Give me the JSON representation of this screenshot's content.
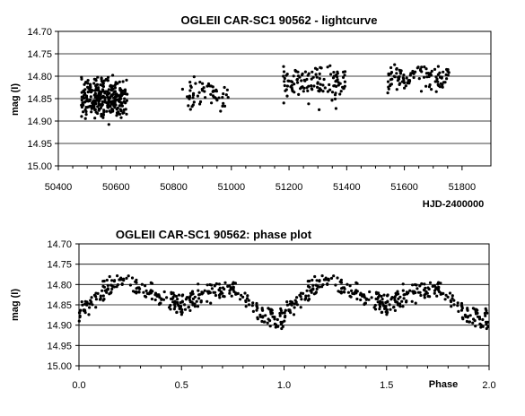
{
  "chart_data": [
    {
      "type": "scatter",
      "title": "OGLEII CAR-SC1 90562 - lightcurve",
      "xlabel": "HJD-2400000",
      "ylabel": "mag (I)",
      "xlim": [
        50400,
        51900
      ],
      "ylim": [
        15.0,
        14.7
      ],
      "y_inverted": true,
      "xticks": [
        50400,
        50600,
        50800,
        51000,
        51200,
        51400,
        51600,
        51800
      ],
      "xtick_labels": [
        "50400",
        "50600",
        "50800",
        "51000",
        "51200",
        "51400",
        "51600",
        "51800"
      ],
      "yticks": [
        14.7,
        14.75,
        14.8,
        14.85,
        14.9,
        14.95,
        15.0
      ],
      "ytick_labels": [
        "14.70",
        "14.75",
        "14.80",
        "14.85",
        "14.90",
        "14.95",
        "15.00"
      ],
      "grid": "horizontal",
      "legend": "none",
      "marker_color": "#000000",
      "seasons": [
        {
          "x_range": [
            50480,
            50640
          ],
          "y_range": [
            14.78,
            14.92
          ],
          "n": 300
        },
        {
          "x_range": [
            50830,
            50990
          ],
          "y_range": [
            14.79,
            14.89
          ],
          "n": 60
        },
        {
          "x_range": [
            51180,
            51400
          ],
          "y_range": [
            14.75,
            14.88
          ],
          "n": 120
        },
        {
          "x_range": [
            51540,
            51760
          ],
          "y_range": [
            14.76,
            14.85
          ],
          "n": 110
        }
      ]
    },
    {
      "type": "scatter",
      "title": "OGLEII CAR-SC1 90562: phase plot",
      "xlabel": "Phase",
      "ylabel": "mag (I)",
      "xlim": [
        0.0,
        2.0
      ],
      "ylim": [
        15.0,
        14.7
      ],
      "y_inverted": true,
      "xticks": [
        0.0,
        0.5,
        1.0,
        1.5,
        2.0
      ],
      "xtick_labels": [
        "0.0",
        "0.5",
        "1.0",
        "1.5",
        "2.0"
      ],
      "yticks": [
        14.7,
        14.75,
        14.8,
        14.85,
        14.9,
        14.95,
        15.0
      ],
      "ytick_labels": [
        "14.70",
        "14.75",
        "14.80",
        "14.85",
        "14.90",
        "14.95",
        "15.00"
      ],
      "grid": "horizontal",
      "legend": "none",
      "marker_color": "#000000",
      "n_points_per_cycle": 310,
      "phase_curve": {
        "phase": [
          0.0,
          0.1,
          0.2,
          0.35,
          0.5,
          0.6,
          0.75,
          0.9,
          0.97,
          1.0
        ],
        "mag": [
          14.875,
          14.82,
          14.79,
          14.82,
          14.855,
          14.82,
          14.81,
          14.875,
          14.895,
          14.875
        ]
      },
      "scatter_half_width": 0.03
    }
  ]
}
